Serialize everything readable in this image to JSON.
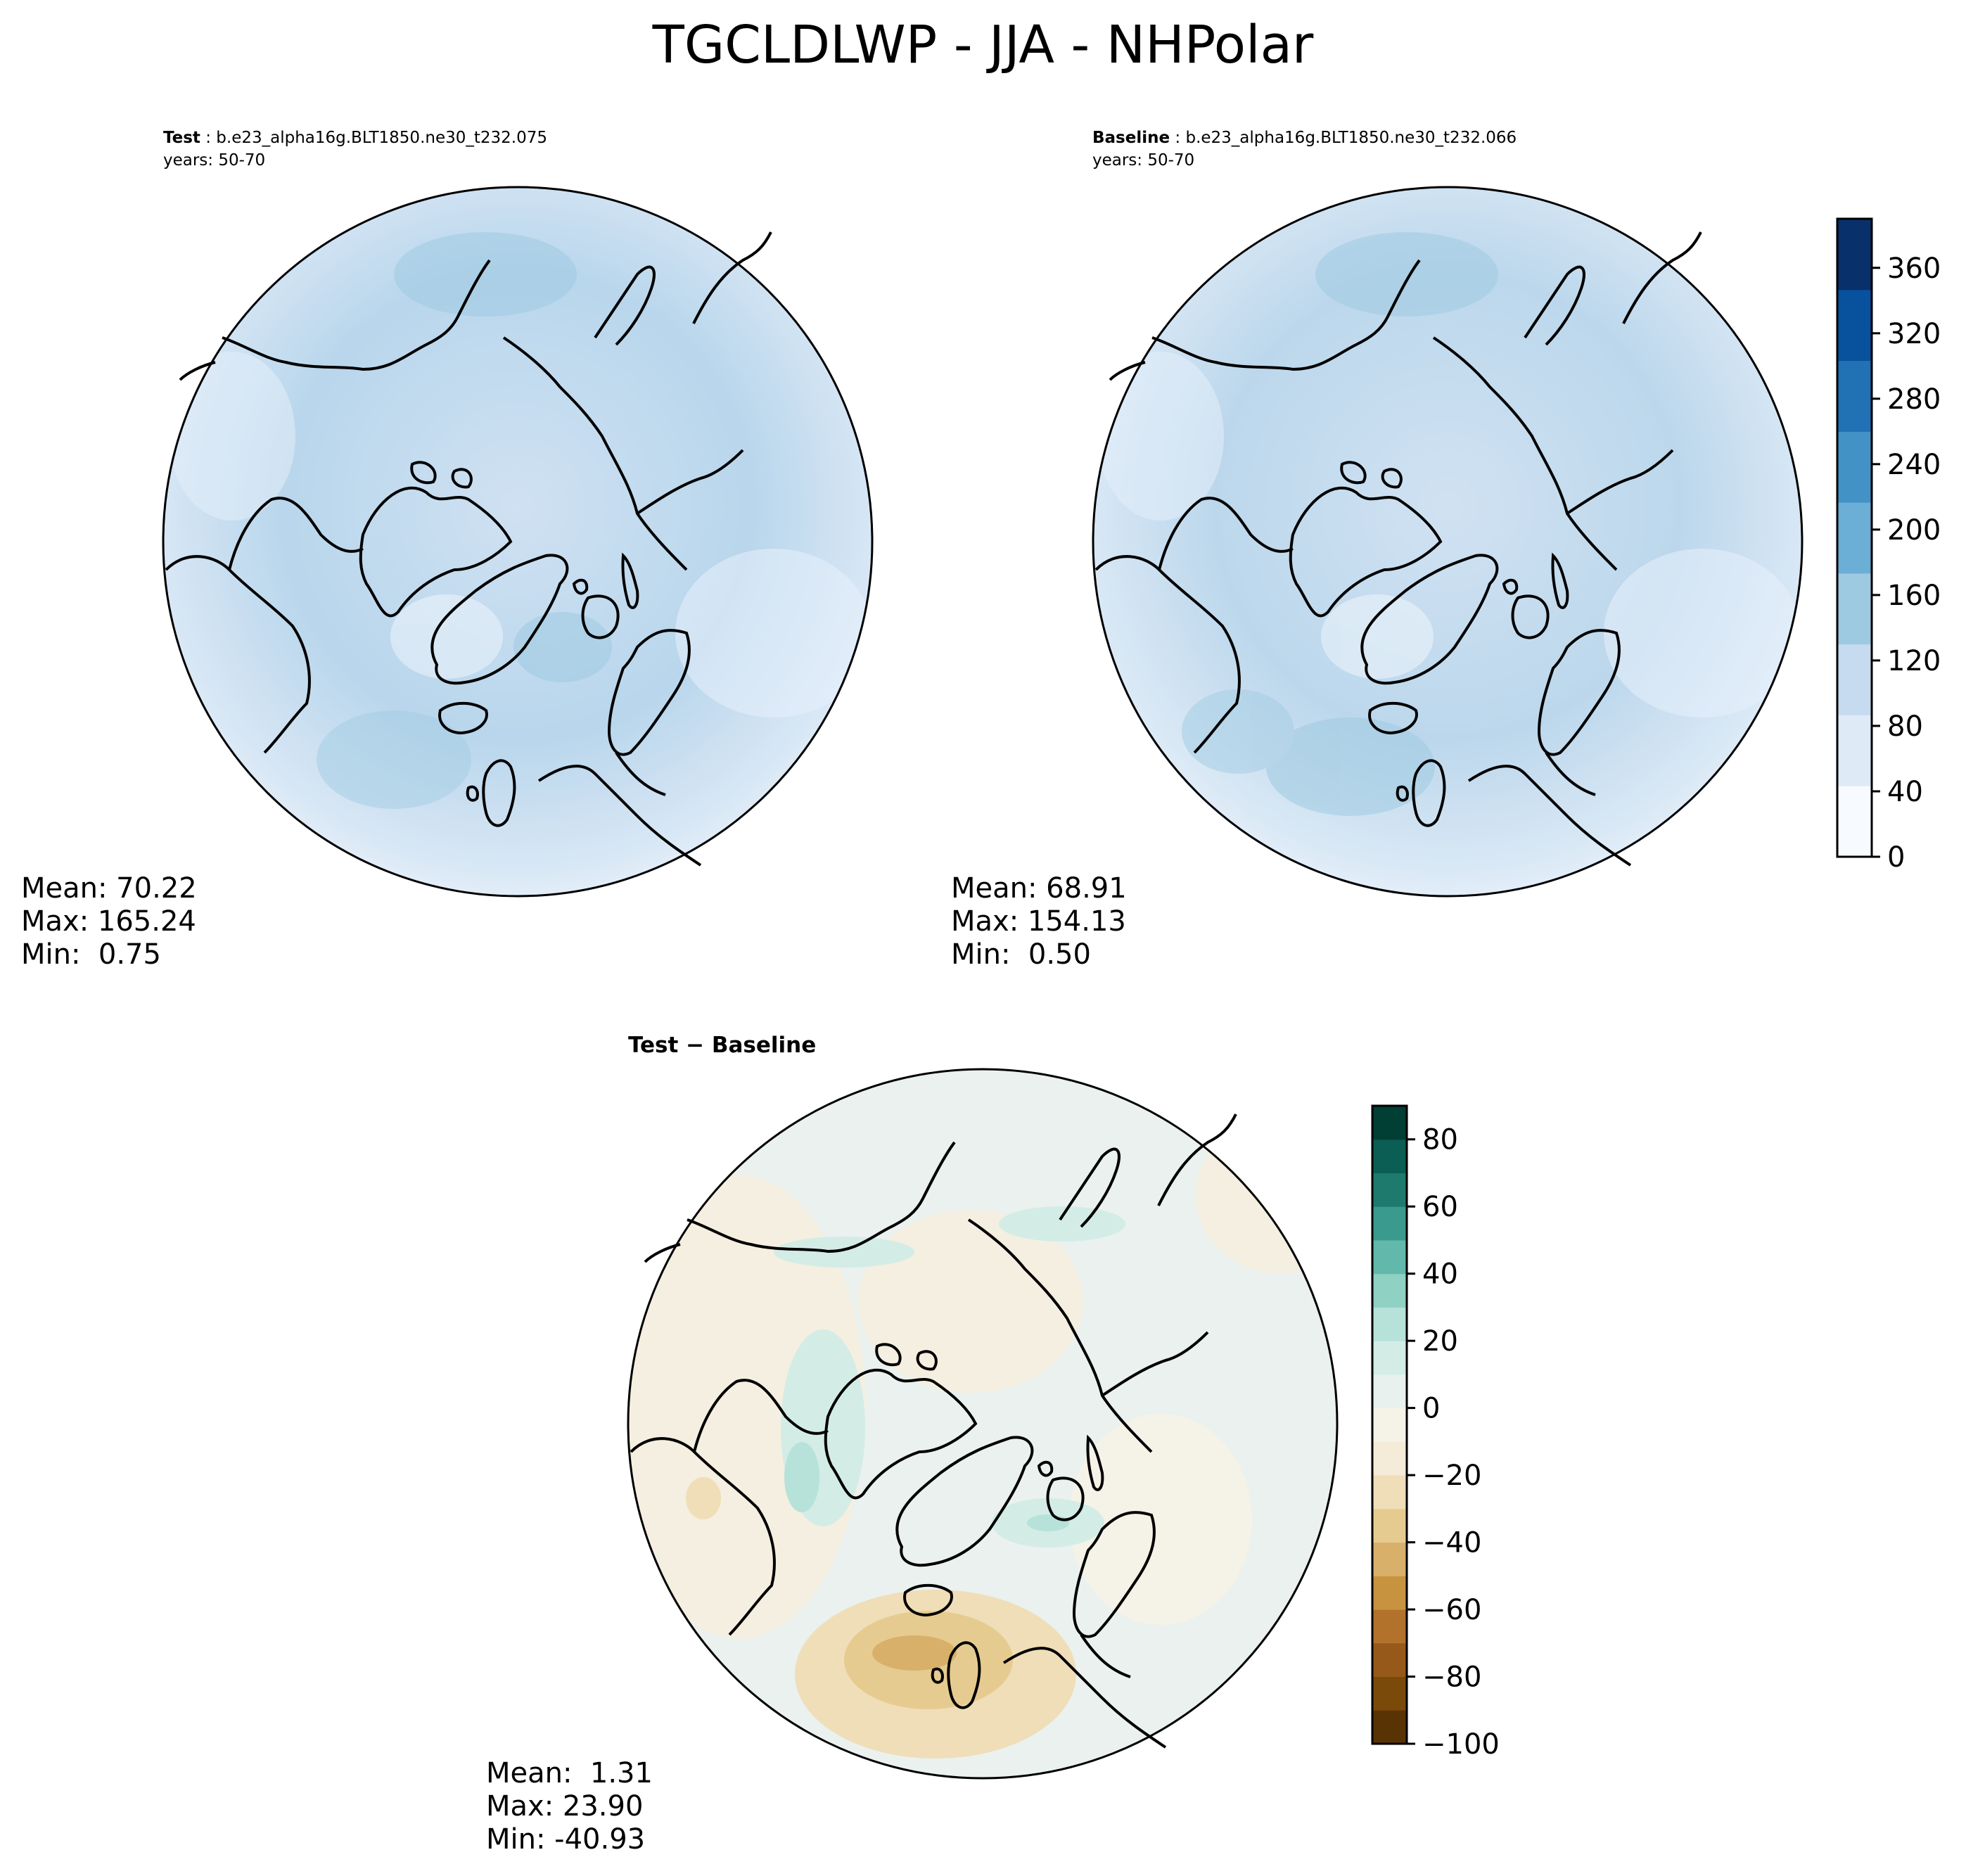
{
  "title": "TGCLDLWP - JJA - NHPolar",
  "panels": [
    {
      "id": "test",
      "label": "Test",
      "case": "b.e23_alpha16g.BLT1850.ne30_t232.075",
      "years": "years: 50-70",
      "stats": {
        "mean": "Mean: 70.22",
        "max": "Max: 165.24",
        "min": "Min:  0.75"
      }
    },
    {
      "id": "baseline",
      "label": "Baseline",
      "case": "b.e23_alpha16g.BLT1850.ne30_t232.066",
      "years": "years: 50-70",
      "stats": {
        "mean": "Mean: 68.91",
        "max": "Max: 154.13",
        "min": "Min:  0.50"
      }
    },
    {
      "id": "diff",
      "label": "Test − Baseline",
      "stats": {
        "mean": "Mean:  1.31",
        "max": "Max: 23.90",
        "min": "Min: -40.93"
      }
    }
  ],
  "colorbars": {
    "main": {
      "colormap": "Blues",
      "range": [
        0,
        390
      ],
      "ticks": [
        "0",
        "40",
        "80",
        "120",
        "160",
        "200",
        "240",
        "280",
        "320",
        "360"
      ],
      "colors": [
        "#f7fbff",
        "#deebf7",
        "#c6dbef",
        "#9ecae1",
        "#6baed6",
        "#4292c6",
        "#2171b5",
        "#08519c",
        "#08306b"
      ]
    },
    "diff": {
      "colormap": "BrBG",
      "range": [
        -100,
        90
      ],
      "ticks": [
        "−100",
        "−80",
        "−60",
        "−40",
        "−20",
        "0",
        "20",
        "40",
        "60",
        "80"
      ],
      "colors": [
        "#5a3305",
        "#7a4a0a",
        "#96591a",
        "#b2722b",
        "#c8933f",
        "#d8b06a",
        "#e6cb90",
        "#efdeb8",
        "#f4ecd8",
        "#f5f2e8",
        "#e9f1ee",
        "#d3ece6",
        "#b6e2d9",
        "#8fd1c3",
        "#62b8ab",
        "#3b9a8e",
        "#1f7a6e",
        "#0b5e53",
        "#013e34"
      ]
    }
  }
}
